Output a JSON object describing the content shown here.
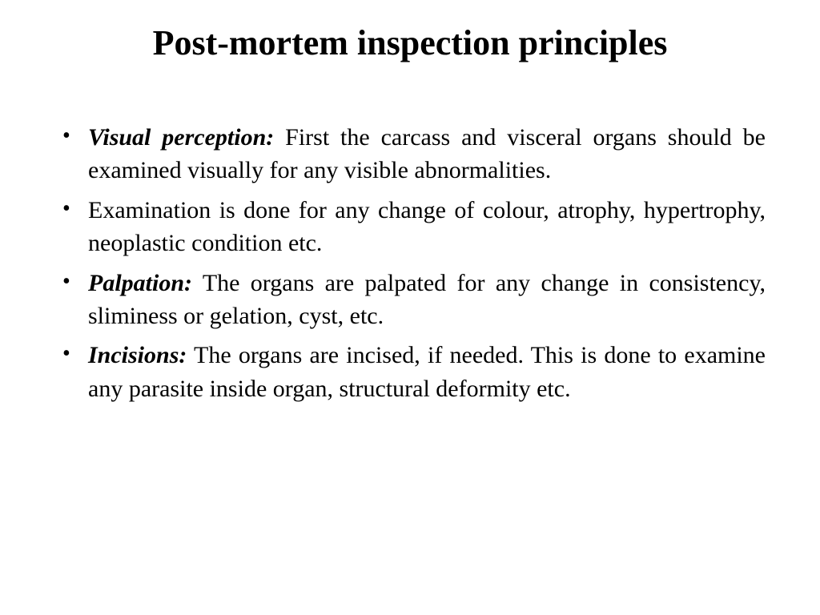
{
  "slide": {
    "title": "Post-mortem inspection principles",
    "title_fontsize": 44,
    "title_weight": "bold",
    "body_fontsize": 30,
    "text_color": "#000000",
    "background_color": "#ffffff",
    "font_family": "Times New Roman",
    "text_align_body": "justify",
    "bullets": [
      {
        "lead": "Visual perception:",
        "text": " First the carcass and visceral organs should be examined visually for any visible abnormalities."
      },
      {
        "lead": "",
        "text": "Examination is done for any change of colour, atrophy, hypertrophy, neoplastic condition etc."
      },
      {
        "lead": "Palpation:",
        "text": " The organs are palpated for any change in consistency, sliminess or gelation, cyst, etc."
      },
      {
        "lead": "Incisions:",
        "text": " The organs are incised, if needed. This is done to examine any parasite inside organ, structural deformity etc."
      }
    ]
  }
}
